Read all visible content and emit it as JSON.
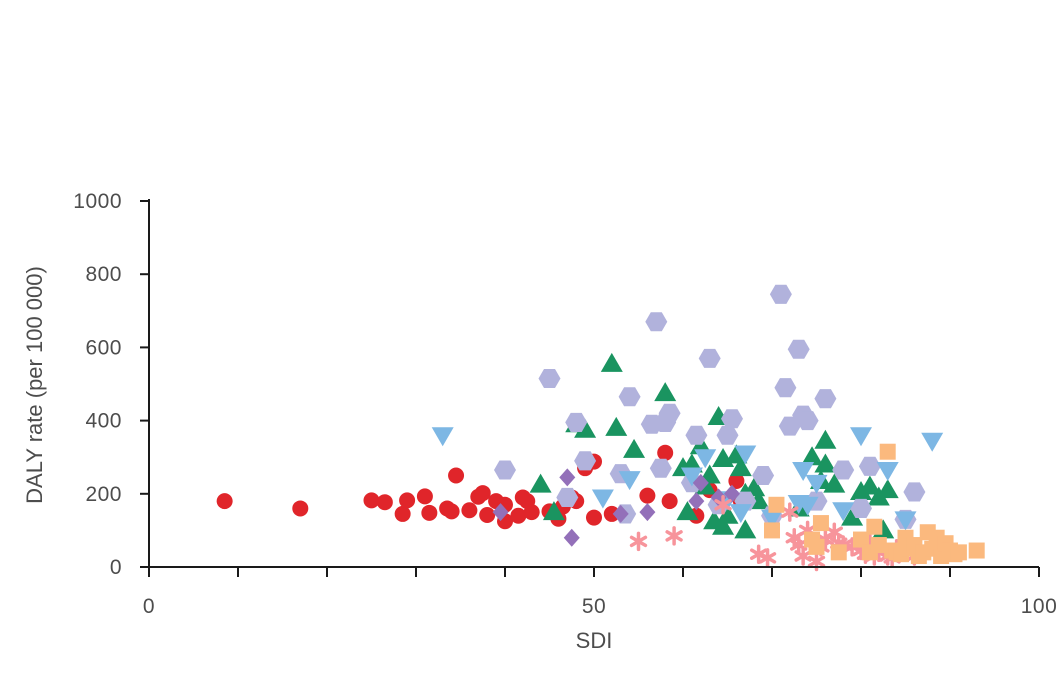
{
  "chart_data": {
    "type": "scatter",
    "title": "",
    "xlabel": "SDI",
    "ylabel": "DALY rate (per 100 000)",
    "xlim": [
      0,
      100
    ],
    "ylim": [
      0,
      1000
    ],
    "x_ticks": [
      0,
      10,
      20,
      30,
      40,
      50,
      60,
      70,
      80,
      90,
      100
    ],
    "x_tick_labels": [
      "0",
      "50",
      "100"
    ],
    "x_tick_label_values": [
      0,
      50,
      100
    ],
    "y_ticks": [
      0,
      200,
      400,
      600,
      800,
      1000
    ],
    "y_tick_labels": [
      "0",
      "200",
      "400",
      "600",
      "800",
      "1000"
    ],
    "grid": false,
    "legend": "none",
    "series": [
      {
        "marker": "circle",
        "color": "#e0252a",
        "points": [
          [
            8.5,
            180
          ],
          [
            17,
            160
          ],
          [
            25,
            182
          ],
          [
            26.5,
            177
          ],
          [
            28.5,
            145
          ],
          [
            29,
            182
          ],
          [
            31,
            193
          ],
          [
            31.5,
            148
          ],
          [
            33.5,
            160
          ],
          [
            34,
            152
          ],
          [
            34.5,
            250
          ],
          [
            36,
            155
          ],
          [
            37,
            192
          ],
          [
            37.5,
            202
          ],
          [
            38,
            142
          ],
          [
            39,
            180
          ],
          [
            40,
            170
          ],
          [
            40,
            125
          ],
          [
            41.5,
            140
          ],
          [
            42,
            190
          ],
          [
            42.5,
            180
          ],
          [
            43,
            150
          ],
          [
            45,
            152
          ],
          [
            46,
            132
          ],
          [
            46.5,
            165
          ],
          [
            47,
            185
          ],
          [
            47.5,
            190
          ],
          [
            48,
            180
          ],
          [
            49,
            270
          ],
          [
            50,
            288
          ],
          [
            50,
            135
          ],
          [
            52,
            145
          ],
          [
            56,
            195
          ],
          [
            58,
            312
          ],
          [
            58.5,
            180
          ],
          [
            61.5,
            140
          ],
          [
            63,
            210
          ],
          [
            66,
            235
          ],
          [
            66.5,
            180
          ]
        ]
      },
      {
        "marker": "triangle-up",
        "color": "#1a9460",
        "points": [
          [
            44,
            225
          ],
          [
            45.5,
            150
          ],
          [
            48,
            390
          ],
          [
            49,
            375
          ],
          [
            52,
            555
          ],
          [
            52.5,
            380
          ],
          [
            54.5,
            320
          ],
          [
            58,
            475
          ],
          [
            60,
            270
          ],
          [
            60.5,
            150
          ],
          [
            61,
            280
          ],
          [
            62,
            330
          ],
          [
            62.5,
            220
          ],
          [
            63,
            250
          ],
          [
            63.5,
            125
          ],
          [
            64,
            410
          ],
          [
            64.5,
            295
          ],
          [
            64.5,
            110
          ],
          [
            65,
            140
          ],
          [
            66,
            305
          ],
          [
            66.5,
            270
          ],
          [
            67,
            200
          ],
          [
            67,
            100
          ],
          [
            68,
            215
          ],
          [
            68.5,
            180
          ],
          [
            73,
            160
          ],
          [
            74.5,
            300
          ],
          [
            75.5,
            235
          ],
          [
            76,
            280
          ],
          [
            76,
            345
          ],
          [
            77,
            225
          ],
          [
            79,
            135
          ],
          [
            80,
            205
          ],
          [
            81,
            220
          ],
          [
            82,
            190
          ],
          [
            82.5,
            100
          ],
          [
            83,
            210
          ]
        ]
      },
      {
        "marker": "hexagon",
        "color": "#b1b2dc",
        "points": [
          [
            40,
            265
          ],
          [
            45,
            515
          ],
          [
            47,
            190
          ],
          [
            48,
            395
          ],
          [
            49,
            290
          ],
          [
            53,
            255
          ],
          [
            53.5,
            145
          ],
          [
            54,
            465
          ],
          [
            56.5,
            390
          ],
          [
            57,
            670
          ],
          [
            57.5,
            270
          ],
          [
            58,
            395
          ],
          [
            58.5,
            420
          ],
          [
            61,
            230
          ],
          [
            61.5,
            360
          ],
          [
            63,
            570
          ],
          [
            64,
            170
          ],
          [
            65,
            360
          ],
          [
            65.5,
            405
          ],
          [
            67,
            180
          ],
          [
            69,
            250
          ],
          [
            70,
            140
          ],
          [
            71,
            745
          ],
          [
            71.5,
            490
          ],
          [
            72,
            385
          ],
          [
            73,
            595
          ],
          [
            73.5,
            415
          ],
          [
            74,
            400
          ],
          [
            75,
            180
          ],
          [
            76,
            460
          ],
          [
            78,
            265
          ],
          [
            80,
            160
          ],
          [
            81,
            275
          ],
          [
            85,
            130
          ],
          [
            86,
            205
          ]
        ]
      },
      {
        "marker": "triangle-down",
        "color": "#7db7e4",
        "points": [
          [
            33,
            360
          ],
          [
            51,
            190
          ],
          [
            54,
            240
          ],
          [
            61,
            250
          ],
          [
            62.5,
            300
          ],
          [
            65,
            185
          ],
          [
            66.5,
            150
          ],
          [
            67,
            310
          ],
          [
            70,
            135
          ],
          [
            73,
            175
          ],
          [
            73.5,
            265
          ],
          [
            74,
            170
          ],
          [
            75,
            230
          ],
          [
            78,
            155
          ],
          [
            80,
            360
          ],
          [
            83,
            265
          ],
          [
            85,
            130
          ],
          [
            88,
            345
          ]
        ]
      },
      {
        "marker": "diamond",
        "color": "#9370b9",
        "points": [
          [
            39.5,
            150
          ],
          [
            47,
            245
          ],
          [
            47.5,
            80
          ],
          [
            53,
            145
          ],
          [
            56,
            150
          ],
          [
            61.5,
            180
          ],
          [
            62,
            230
          ],
          [
            64,
            190
          ],
          [
            65.5,
            200
          ]
        ]
      },
      {
        "marker": "asterisk",
        "color": "#f7949b",
        "points": [
          [
            55,
            70
          ],
          [
            59,
            85
          ],
          [
            64.5,
            170
          ],
          [
            68.5,
            35
          ],
          [
            69.5,
            25
          ],
          [
            72,
            150
          ],
          [
            72.5,
            80
          ],
          [
            73,
            60
          ],
          [
            73.5,
            30
          ],
          [
            74,
            100
          ],
          [
            75,
            15
          ],
          [
            75.5,
            55
          ],
          [
            76,
            75
          ],
          [
            77,
            95
          ],
          [
            77.5,
            65
          ],
          [
            78,
            60
          ],
          [
            79,
            55
          ],
          [
            80,
            45
          ],
          [
            80.5,
            35
          ],
          [
            81,
            65
          ],
          [
            81.5,
            30
          ],
          [
            82,
            40
          ],
          [
            83,
            30
          ],
          [
            83.5,
            25
          ],
          [
            84,
            50
          ],
          [
            85,
            45
          ],
          [
            86,
            30
          ],
          [
            86.5,
            40
          ]
        ]
      },
      {
        "marker": "square",
        "color": "#fbb97e",
        "points": [
          [
            70,
            100
          ],
          [
            70.5,
            170
          ],
          [
            74.5,
            75
          ],
          [
            75,
            55
          ],
          [
            75.5,
            120
          ],
          [
            77.5,
            40
          ],
          [
            80,
            75
          ],
          [
            81,
            40
          ],
          [
            81.5,
            110
          ],
          [
            82,
            60
          ],
          [
            83,
            315
          ],
          [
            83.5,
            45
          ],
          [
            84,
            40
          ],
          [
            84.5,
            35
          ],
          [
            85,
            80
          ],
          [
            85.5,
            50
          ],
          [
            86,
            60
          ],
          [
            86.5,
            30
          ],
          [
            87,
            40
          ],
          [
            87.5,
            95
          ],
          [
            88,
            50
          ],
          [
            88.5,
            80
          ],
          [
            89,
            30
          ],
          [
            89.5,
            65
          ],
          [
            90,
            45
          ],
          [
            90.5,
            35
          ],
          [
            91,
            40
          ],
          [
            93,
            45
          ]
        ]
      }
    ]
  }
}
